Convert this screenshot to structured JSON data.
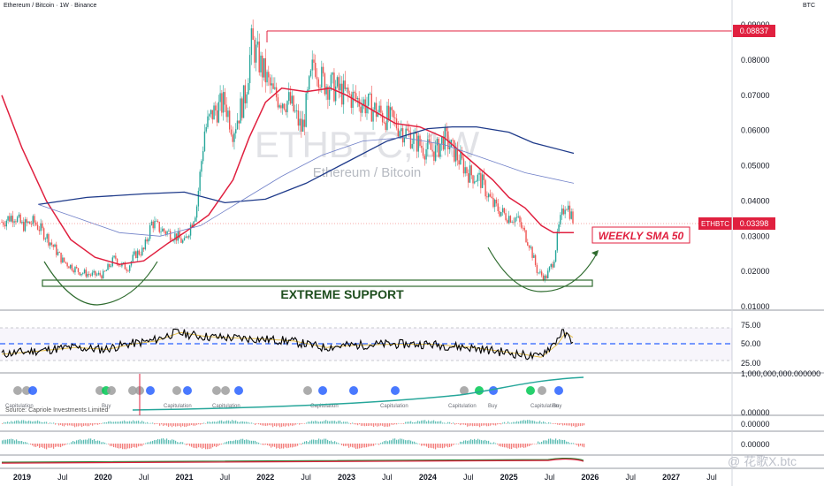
{
  "header": {
    "symbol_title": "Ethereum / Bitcoin · 1W · Binance",
    "currency": "BTC"
  },
  "watermark": {
    "main": "ETHBTC, 1W",
    "sub": "Ethereum / Bitcoin"
  },
  "annotations": {
    "support_label": "EXTREME SUPPORT",
    "sma_label": "WEEKLY SMA 50",
    "source_note": "Source: Capriole Investments Limited"
  },
  "badges": {
    "high_value": "0.08837",
    "ticker": "ETHBTC",
    "last_value": "0.03398"
  },
  "indicator_labels": [
    "Capitulation",
    "Buy"
  ],
  "footer_watermark": "@ 花歌X.btc",
  "colors": {
    "price_up": "#26a69a",
    "price_down": "#ef5350",
    "sma50": "#e0203f",
    "ma_long": "#1e3a8a",
    "ma_mid": "#7080c8",
    "support": "#2e6b2e",
    "rsi": "#000000",
    "rsi_signal": "#e6c14a",
    "rsi_mid": "#2962ff",
    "highline": "#e0203f"
  },
  "chart_data": {
    "type": "line",
    "title": "ETHBTC, 1W",
    "xlabel": "",
    "ylabel": "",
    "x_ticks": [
      "2019",
      "Jul",
      "2020",
      "Jul",
      "2021",
      "Jul",
      "2022",
      "Jul",
      "2023",
      "Jul",
      "2024",
      "Jul",
      "2025",
      "Jul",
      "2026",
      "Jul",
      "2027",
      "Jul"
    ],
    "y_ticks": [
      "0.01000",
      "0.02000",
      "0.03000",
      "0.04000",
      "0.05000",
      "0.06000",
      "0.07000",
      "0.08000",
      "0.09000"
    ],
    "ylim": [
      0.01,
      0.09
    ],
    "grid": false,
    "series": [
      {
        "name": "ETHBTC",
        "x": [
          2018.75,
          2018.9,
          2019.0,
          2019.15,
          2019.3,
          2019.5,
          2019.7,
          2019.85,
          2020.0,
          2020.15,
          2020.2,
          2020.3,
          2020.4,
          2020.5,
          2020.6,
          2020.7,
          2020.8,
          2020.9,
          2021.0,
          2021.15,
          2021.25,
          2021.35,
          2021.5,
          2021.6,
          2021.75,
          2021.83,
          2021.95,
          2022.1,
          2022.3,
          2022.45,
          2022.6,
          2022.7,
          2022.85,
          2023.0,
          2023.2,
          2023.4,
          2023.6,
          2023.8,
          2023.95,
          2024.1,
          2024.2,
          2024.35,
          2024.5,
          2024.65,
          2024.8,
          2024.95,
          2025.1,
          2025.25,
          2025.35,
          2025.45,
          2025.55,
          2025.62,
          2025.7,
          2025.8
        ],
        "values": [
          0.034,
          0.036,
          0.033,
          0.034,
          0.03,
          0.023,
          0.02,
          0.019,
          0.019,
          0.024,
          0.022,
          0.021,
          0.025,
          0.026,
          0.034,
          0.032,
          0.031,
          0.03,
          0.028,
          0.038,
          0.06,
          0.065,
          0.068,
          0.06,
          0.07,
          0.085,
          0.078,
          0.07,
          0.068,
          0.06,
          0.08,
          0.074,
          0.072,
          0.07,
          0.068,
          0.065,
          0.062,
          0.058,
          0.055,
          0.054,
          0.058,
          0.053,
          0.048,
          0.046,
          0.039,
          0.036,
          0.035,
          0.028,
          0.02,
          0.018,
          0.023,
          0.033,
          0.04,
          0.034
        ]
      },
      {
        "name": "WEEKLY SMA 50",
        "x": [
          2018.75,
          2019.0,
          2019.3,
          2019.6,
          2019.9,
          2020.2,
          2020.5,
          2020.8,
          2021.0,
          2021.3,
          2021.6,
          2021.8,
          2022.0,
          2022.2,
          2022.5,
          2022.8,
          2023.0,
          2023.3,
          2023.6,
          2023.9,
          2024.2,
          2024.5,
          2024.8,
          2025.0,
          2025.2,
          2025.4,
          2025.55,
          2025.8
        ],
        "values": [
          0.07,
          0.055,
          0.04,
          0.029,
          0.024,
          0.022,
          0.023,
          0.028,
          0.031,
          0.036,
          0.046,
          0.058,
          0.068,
          0.072,
          0.071,
          0.072,
          0.07,
          0.066,
          0.062,
          0.061,
          0.058,
          0.052,
          0.046,
          0.041,
          0.038,
          0.033,
          0.031,
          0.031
        ]
      }
    ],
    "horizontal_lines": [
      {
        "label": "0.08837",
        "value": 0.08837
      },
      {
        "label": "0.03398",
        "value": 0.03398
      }
    ],
    "rsi_ticks": [
      "75.00",
      "50.00",
      "25.00"
    ],
    "oscillator_ticks": [
      "1,000,000,000.000000",
      "0.00000",
      "0.00000",
      "0.00000"
    ]
  }
}
